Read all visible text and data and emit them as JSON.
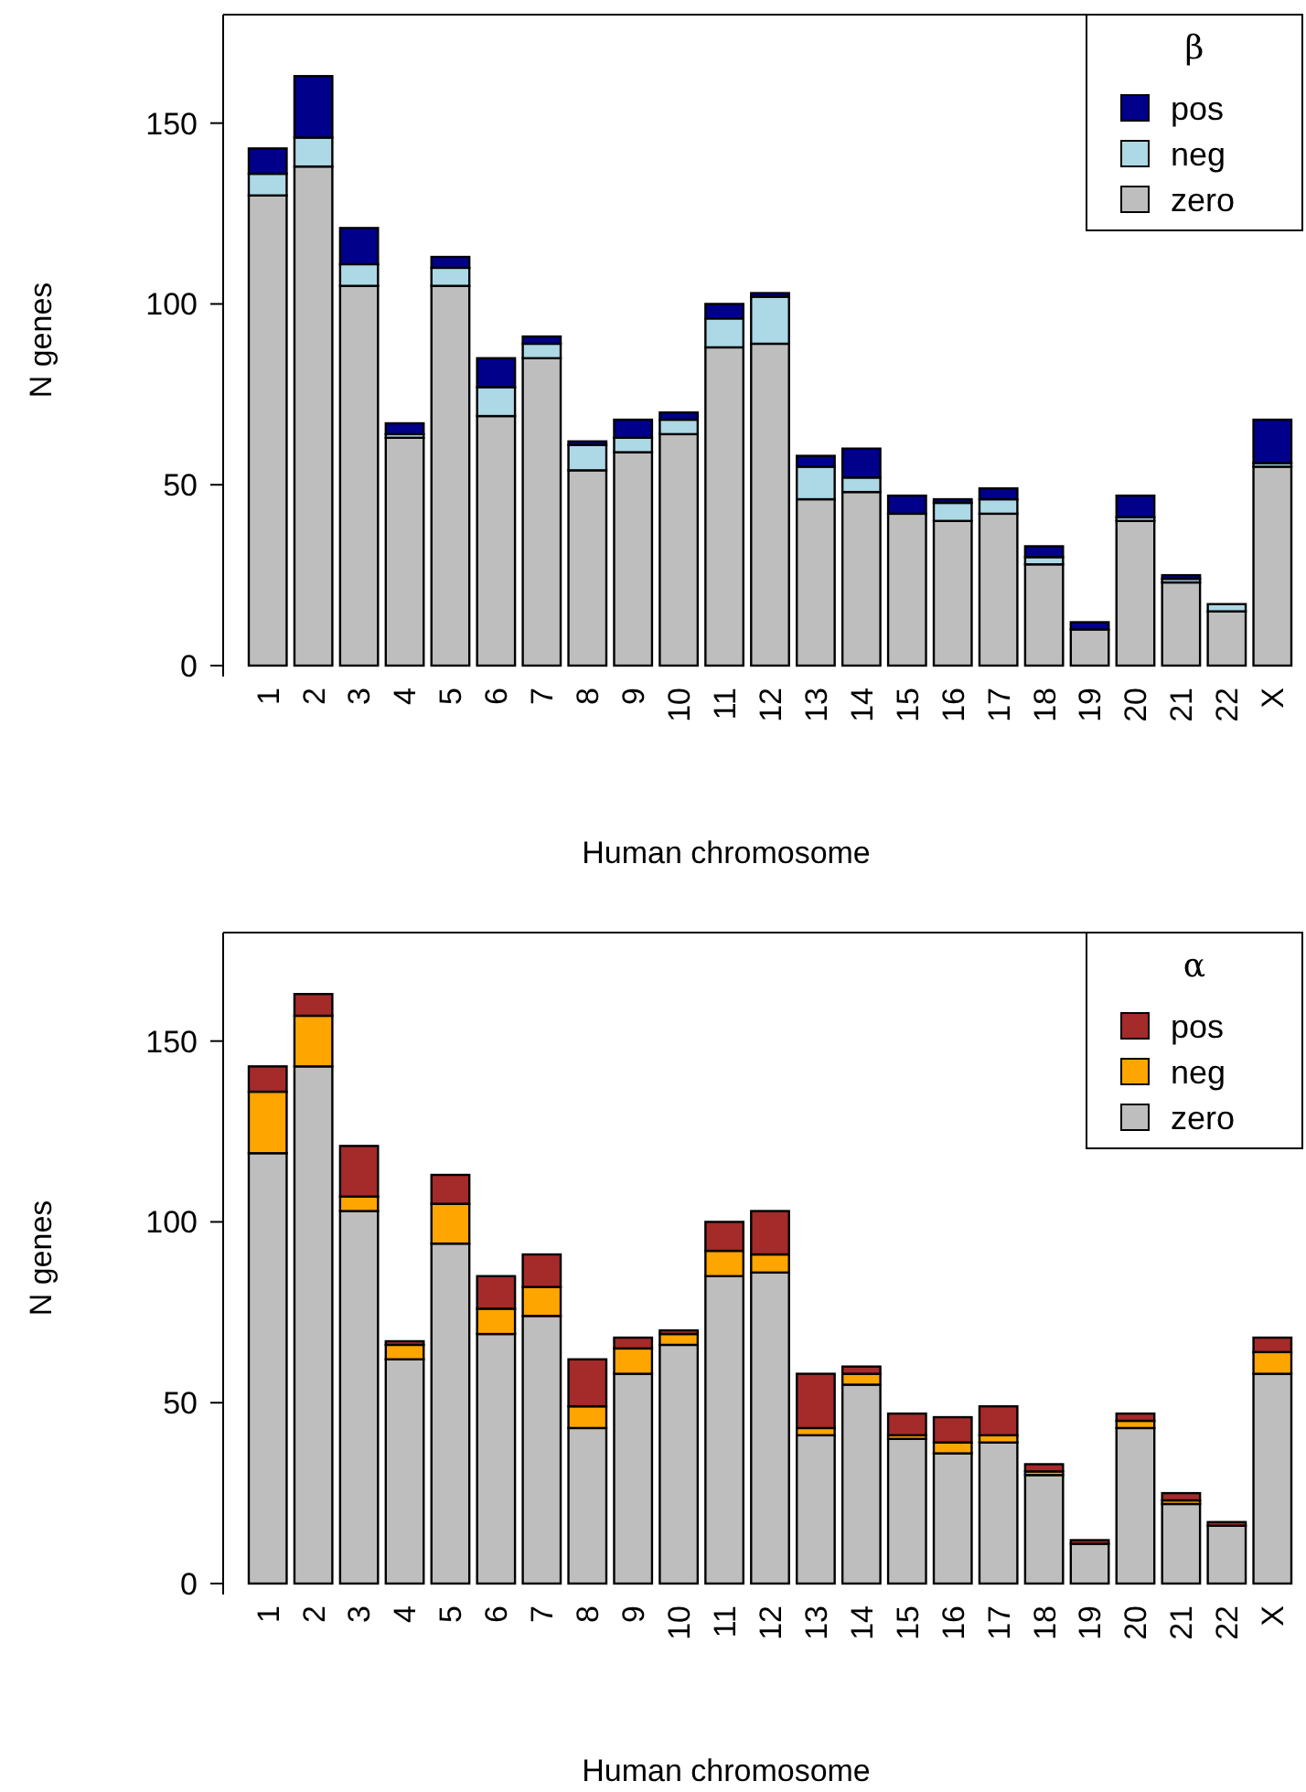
{
  "chart_data": [
    {
      "type": "bar",
      "stacked": true,
      "xlabel": "Human chromosome",
      "ylabel": "N genes",
      "legend_title": "β",
      "legend": "top right",
      "ylim": [
        0,
        180
      ],
      "yticks": [
        0,
        50,
        100,
        150
      ],
      "categories": [
        "1",
        "2",
        "3",
        "4",
        "5",
        "6",
        "7",
        "8",
        "9",
        "10",
        "11",
        "12",
        "13",
        "14",
        "15",
        "16",
        "17",
        "18",
        "19",
        "20",
        "21",
        "22",
        "X"
      ],
      "series": [
        {
          "name": "zero",
          "color": "#bebebe",
          "values": [
            130,
            138,
            105,
            63,
            105,
            69,
            85,
            54,
            59,
            64,
            88,
            89,
            46,
            48,
            42,
            40,
            42,
            28,
            10,
            40,
            23,
            15,
            55
          ]
        },
        {
          "name": "neg",
          "color": "#add8e6",
          "values": [
            6,
            8,
            6,
            1,
            5,
            8,
            4,
            7,
            4,
            4,
            8,
            13,
            9,
            4,
            0,
            5,
            4,
            2,
            0,
            1,
            1,
            2,
            1
          ]
        },
        {
          "name": "pos",
          "color": "#00008b",
          "values": [
            7,
            17,
            10,
            3,
            3,
            8,
            2,
            1,
            5,
            2,
            4,
            1,
            3,
            8,
            5,
            1,
            3,
            3,
            2,
            6,
            1,
            0,
            12
          ]
        }
      ]
    },
    {
      "type": "bar",
      "stacked": true,
      "xlabel": "Human chromosome",
      "ylabel": "N genes",
      "legend_title": "α",
      "legend": "top right",
      "ylim": [
        0,
        180
      ],
      "yticks": [
        0,
        50,
        100,
        150
      ],
      "categories": [
        "1",
        "2",
        "3",
        "4",
        "5",
        "6",
        "7",
        "8",
        "9",
        "10",
        "11",
        "12",
        "13",
        "14",
        "15",
        "16",
        "17",
        "18",
        "19",
        "20",
        "21",
        "22",
        "X"
      ],
      "series": [
        {
          "name": "zero",
          "color": "#bebebe",
          "values": [
            119,
            143,
            103,
            62,
            94,
            69,
            74,
            43,
            58,
            66,
            85,
            86,
            41,
            55,
            40,
            36,
            39,
            30,
            11,
            43,
            22,
            16,
            58
          ]
        },
        {
          "name": "neg",
          "color": "#ffa500",
          "values": [
            17,
            14,
            4,
            4,
            11,
            7,
            8,
            6,
            7,
            3,
            7,
            5,
            2,
            3,
            1,
            3,
            2,
            1,
            0,
            2,
            1,
            0,
            6
          ]
        },
        {
          "name": "pos",
          "color": "#a52a2a",
          "values": [
            7,
            6,
            14,
            1,
            8,
            9,
            9,
            13,
            3,
            1,
            8,
            12,
            15,
            2,
            6,
            7,
            8,
            2,
            1,
            2,
            2,
            1,
            4
          ]
        }
      ]
    }
  ]
}
